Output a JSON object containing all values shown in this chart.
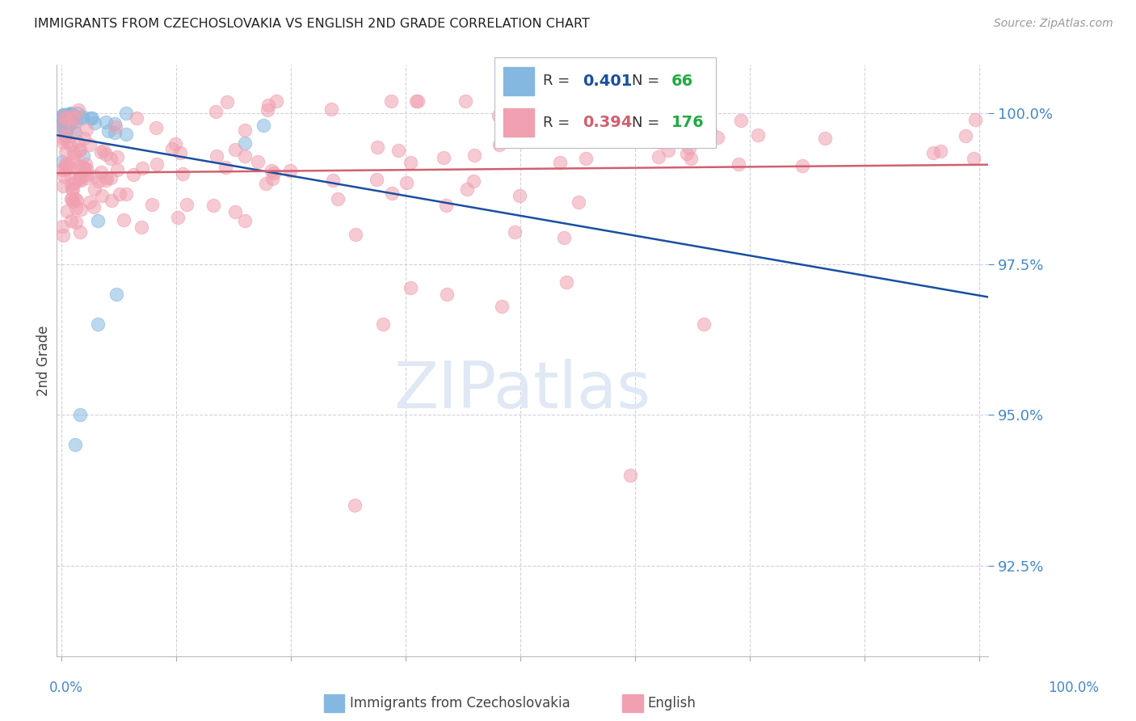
{
  "title": "IMMIGRANTS FROM CZECHOSLOVAKIA VS ENGLISH 2ND GRADE CORRELATION CHART",
  "source": "Source: ZipAtlas.com",
  "ylabel": "2nd Grade",
  "yticks": [
    92.5,
    95.0,
    97.5,
    100.0
  ],
  "ytick_labels": [
    "92.5%",
    "95.0%",
    "97.5%",
    "100.0%"
  ],
  "ymin": 91.0,
  "ymax": 100.8,
  "xmin": -0.5,
  "xmax": 101.0,
  "blue_R": 0.401,
  "blue_N": 66,
  "pink_R": 0.394,
  "pink_N": 176,
  "blue_color": "#85B8E0",
  "pink_color": "#F0A0B0",
  "blue_line_color": "#1A4FA0",
  "pink_line_color": "#D06070",
  "n_color": "#22AA44",
  "background_color": "#FFFFFF",
  "grid_color": "#CCCCDD",
  "title_fontsize": 11.5,
  "axis_label_color": "#4488CC",
  "source_color": "#999999",
  "watermark_color": "#E0E8F5",
  "blue_legend_color": "#1A4FA0",
  "pink_legend_color": "#D06070"
}
